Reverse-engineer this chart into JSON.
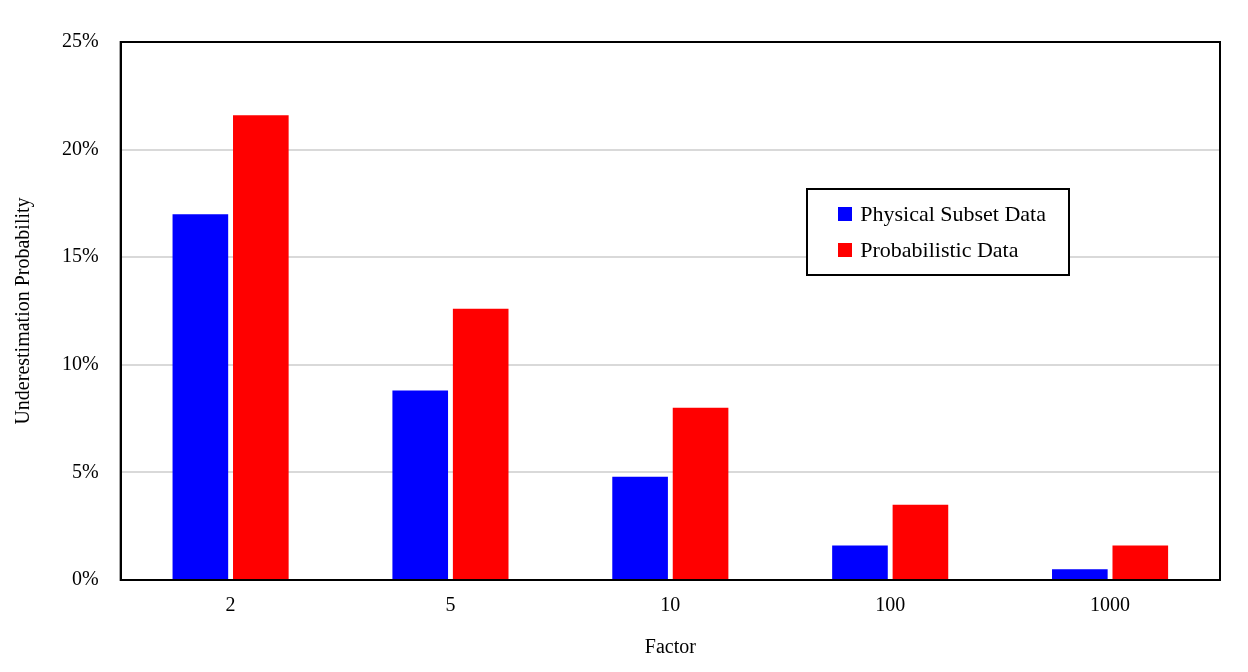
{
  "chart_data": {
    "type": "bar",
    "xlabel": "Factor",
    "ylabel": "Underestimation Probability",
    "categories": [
      "2",
      "5",
      "10",
      "100",
      "1000"
    ],
    "series": [
      {
        "name": "Physical Subset Data",
        "color": "#0000ff",
        "values": [
          17.0,
          8.8,
          4.8,
          1.6,
          0.5
        ]
      },
      {
        "name": "Probabilistic Data",
        "color": "#ff0000",
        "values": [
          21.6,
          12.6,
          8.0,
          3.5,
          1.6
        ]
      }
    ],
    "ylim": [
      0,
      25
    ],
    "yticks": [
      {
        "value": 0,
        "label": "0%"
      },
      {
        "value": 5,
        "label": "5%"
      },
      {
        "value": 10,
        "label": "10%"
      },
      {
        "value": 15,
        "label": "15%"
      },
      {
        "value": 20,
        "label": "20%"
      },
      {
        "value": 25,
        "label": "25%"
      }
    ],
    "grid": "y",
    "legend": "top right"
  }
}
